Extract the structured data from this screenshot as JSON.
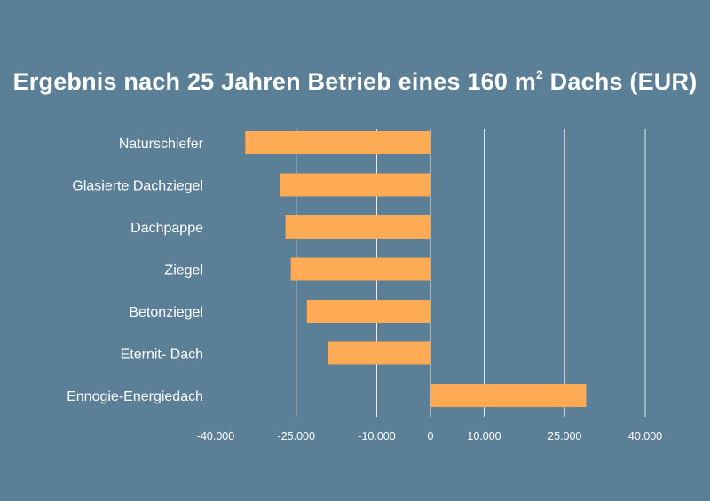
{
  "chart_data": {
    "type": "bar",
    "orientation": "horizontal",
    "title_main": "Ergebnis nach 25 Jahren Betrieb eines 160 m",
    "title_sup": "2",
    "title_end": " Dachs (EUR)",
    "categories": [
      "Naturschiefer",
      "Glasierte Dachziegel",
      "Dachpappe",
      "Ziegel",
      "Betonziegel",
      "Eternit- Dach",
      "Ennogie-Energiedach"
    ],
    "values": [
      -34500,
      -28000,
      -27000,
      -26000,
      -23000,
      -19000,
      29000
    ],
    "xlim": [
      -40000,
      40000
    ],
    "ticks": [
      -40000,
      -25000,
      -10000,
      0,
      10000,
      25000,
      40000
    ],
    "tick_labels": [
      "-40.000",
      "-25.000",
      "-10.000",
      "0",
      "10.000",
      "25.000",
      "40.000"
    ],
    "grid": "vertical",
    "colors": {
      "background": "#5b7f96",
      "bar": "#ffaa55",
      "grid": "#e6ecf0",
      "text": "#ffffff"
    }
  }
}
